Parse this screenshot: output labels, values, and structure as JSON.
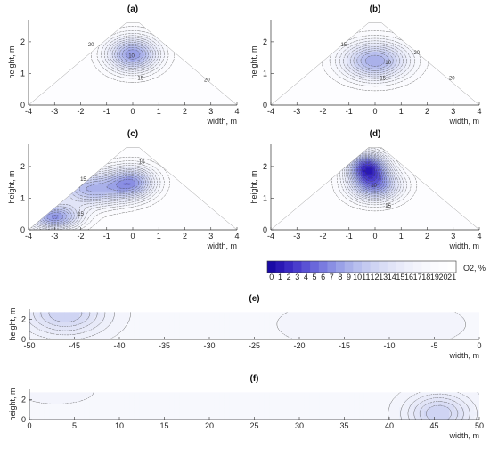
{
  "colors": {
    "levels": [
      "#1a0aa6",
      "#2a18b4",
      "#3a2ac2",
      "#4a3dcc",
      "#5a52d4",
      "#6a67da",
      "#7a7bdf",
      "#8a8fe3",
      "#9aa1e7",
      "#aab1ea",
      "#b8bfee",
      "#c4caf0",
      "#cfd4f3",
      "#d9ddf5",
      "#e1e4f7",
      "#e8eaf9",
      "#eef0fb",
      "#f3f4fc",
      "#f7f8fd",
      "#fbfbfe",
      "#fdfdff",
      "#ffffff"
    ],
    "contour": "#444444",
    "axis": "#333333"
  },
  "chart_data": [
    {
      "id": "a",
      "panel_label": "(a)",
      "type": "heatmap",
      "xlabel": "width, m",
      "ylabel": "height, m",
      "xlim": [
        -4,
        4
      ],
      "ylim": [
        0,
        2.7
      ],
      "xticks": [
        "-4",
        "-3",
        "-2",
        "-1",
        "0",
        "1",
        "2",
        "3",
        "4"
      ],
      "yticks": [
        "0",
        "1",
        "2"
      ],
      "shape": "triangle",
      "base_halfwidth": 4,
      "apex_height": 2.6,
      "minima": [
        {
          "x": 0.0,
          "y": 1.6,
          "value": 8,
          "sx": 1.0,
          "sy": 0.55
        }
      ],
      "background_value": 21,
      "contour_labels": [
        {
          "x": -1.6,
          "y": 1.85,
          "text": "20"
        },
        {
          "x": -0.05,
          "y": 1.5,
          "text": "10"
        },
        {
          "x": 0.3,
          "y": 0.8,
          "text": "15"
        },
        {
          "x": 2.85,
          "y": 0.75,
          "text": "20"
        }
      ]
    },
    {
      "id": "b",
      "panel_label": "(b)",
      "type": "heatmap",
      "xlabel": "width, m",
      "ylabel": "height, m",
      "xlim": [
        -4,
        4
      ],
      "ylim": [
        0,
        2.7
      ],
      "xticks": [
        "-4",
        "-3",
        "-2",
        "-1",
        "0",
        "1",
        "2",
        "3",
        "4"
      ],
      "yticks": [
        "0",
        "1",
        "2"
      ],
      "shape": "triangle",
      "base_halfwidth": 4,
      "apex_height": 2.6,
      "minima": [
        {
          "x": 0.0,
          "y": 1.4,
          "value": 9,
          "sx": 1.3,
          "sy": 0.6
        }
      ],
      "background_value": 21,
      "contour_labels": [
        {
          "x": -1.2,
          "y": 1.85,
          "text": "15"
        },
        {
          "x": 0.5,
          "y": 1.3,
          "text": "10"
        },
        {
          "x": 0.3,
          "y": 0.8,
          "text": "15"
        },
        {
          "x": 1.6,
          "y": 1.6,
          "text": "20"
        },
        {
          "x": 2.95,
          "y": 0.8,
          "text": "20"
        }
      ]
    },
    {
      "id": "c",
      "panel_label": "(c)",
      "type": "heatmap",
      "xlabel": "width, m",
      "ylabel": "height, m",
      "xlim": [
        -4,
        4
      ],
      "ylim": [
        0,
        2.7
      ],
      "xticks": [
        "-4",
        "-3",
        "-2",
        "-1",
        "0",
        "1",
        "2",
        "3",
        "4"
      ],
      "yticks": [
        "0",
        "1",
        "2"
      ],
      "shape": "triangle",
      "base_halfwidth": 4,
      "apex_height": 2.6,
      "minima": [
        {
          "x": -1.6,
          "y": 1.3,
          "value": 10,
          "sx": 1.4,
          "sy": 0.55
        },
        {
          "x": 0.0,
          "y": 1.5,
          "value": 10,
          "sx": 0.9,
          "sy": 0.5
        },
        {
          "x": -3.0,
          "y": 0.4,
          "value": 8,
          "sx": 1.0,
          "sy": 0.4
        }
      ],
      "background_value": 21,
      "contour_labels": [
        {
          "x": -1.9,
          "y": 1.55,
          "text": "15"
        },
        {
          "x": 0.35,
          "y": 2.1,
          "text": "15"
        },
        {
          "x": -2.0,
          "y": 0.45,
          "text": "15"
        }
      ]
    },
    {
      "id": "d",
      "panel_label": "(d)",
      "type": "heatmap",
      "xlabel": "width, m",
      "ylabel": "height, m",
      "xlim": [
        -4,
        4
      ],
      "ylim": [
        0,
        2.7
      ],
      "xticks": [
        "-4",
        "-3",
        "-2",
        "-1",
        "0",
        "1",
        "2",
        "3",
        "4"
      ],
      "yticks": [
        "0",
        "1",
        "2"
      ],
      "shape": "triangle",
      "base_halfwidth": 4,
      "apex_height": 2.6,
      "minima": [
        {
          "x": -0.3,
          "y": 2.0,
          "value": 5,
          "sx": 0.75,
          "sy": 0.45
        },
        {
          "x": 0.0,
          "y": 1.4,
          "value": 8,
          "sx": 1.0,
          "sy": 0.5
        }
      ],
      "background_value": 21,
      "contour_labels": [
        {
          "x": -0.05,
          "y": 1.35,
          "text": "10"
        },
        {
          "x": 0.5,
          "y": 0.7,
          "text": "15"
        }
      ]
    },
    {
      "id": "e",
      "panel_label": "(e)",
      "type": "heatmap",
      "xlabel": "width, m",
      "ylabel": "height, m",
      "xlim": [
        -50,
        0
      ],
      "ylim": [
        0,
        3
      ],
      "xticks": [
        "-50",
        "-45",
        "-40",
        "-35",
        "-30",
        "-25",
        "-20",
        "-15",
        "-10",
        "-5",
        "0"
      ],
      "yticks": [
        "0",
        "2"
      ],
      "shape": "rectangle",
      "minima": [
        {
          "x": -46,
          "y": 2.6,
          "value": 12,
          "sx": 4.5,
          "sy": 2.2
        },
        {
          "x": -12,
          "y": 1.5,
          "value": 17,
          "sx": 10,
          "sy": 2.5
        }
      ],
      "background_value": 18.5,
      "contour_labels": []
    },
    {
      "id": "f",
      "panel_label": "(f)",
      "type": "heatmap",
      "xlabel": "width, m",
      "ylabel": "height, m",
      "xlim": [
        0,
        50
      ],
      "ylim": [
        0,
        3
      ],
      "xticks": [
        "0",
        "5",
        "10",
        "15",
        "20",
        "25",
        "30",
        "35",
        "40",
        "45",
        "50"
      ],
      "yticks": [
        "0",
        "2"
      ],
      "shape": "rectangle",
      "minima": [
        {
          "x": 45.5,
          "y": 0.6,
          "value": 12,
          "sx": 3.5,
          "sy": 2.0
        },
        {
          "x": 3,
          "y": 2.8,
          "value": 17.5,
          "sx": 5,
          "sy": 1.5
        }
      ],
      "background_value": 18.5,
      "contour_labels": []
    }
  ],
  "colorbar": {
    "ticks": [
      "0",
      "1",
      "2",
      "3",
      "4",
      "5",
      "6",
      "7",
      "8",
      "9",
      "10",
      "11",
      "12",
      "13",
      "14",
      "15",
      "16",
      "17",
      "18",
      "19",
      "20",
      "21"
    ],
    "label": "O2, %"
  }
}
